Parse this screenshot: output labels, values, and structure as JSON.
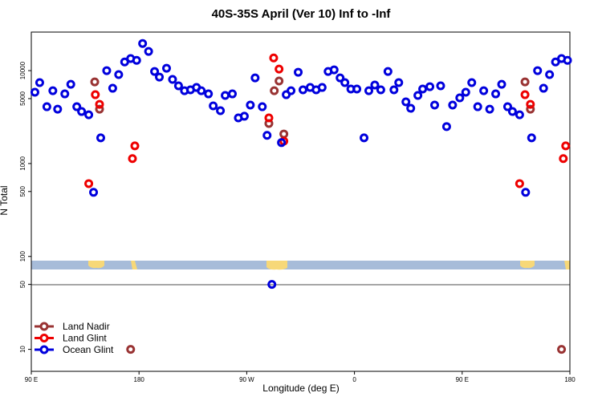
{
  "chart_data": {
    "type": "scatter",
    "title": "40S-35S April (Ver 10)   Inf to -Inf",
    "x_label": "Longitude (deg E)",
    "y_label": "N Total",
    "ylog": true,
    "legend": "bottom-left",
    "xlim": [
      90,
      540
    ],
    "ylim": [
      5.8,
      26000
    ],
    "xticks": [
      {
        "value": 90,
        "label": "90 E"
      },
      180,
      {
        "value": 270,
        "label": "90 W"
      },
      {
        "value": 360,
        "label": "0"
      },
      {
        "value": 450,
        "label": "90 E"
      },
      {
        "value": 540,
        "label": "180"
      }
    ],
    "yticks": [
      10,
      50,
      100,
      500,
      1000,
      5000,
      10000
    ],
    "series": [
      {
        "name": "Land Nadir",
        "color": "#993333",
        "x": [
          143,
          147,
          173,
          288.5,
          293,
          297,
          301,
          502.5,
          507,
          533
        ],
        "values": [
          7570,
          3850,
          10,
          2700,
          6080,
          7730,
          2080,
          7570,
          3850,
          10
        ]
      },
      {
        "name": "Land Glint",
        "color": "#ee0000",
        "x": [
          138,
          143.5,
          147,
          174.5,
          176.5,
          288.5,
          292.5,
          297,
          301,
          498,
          502.5,
          507,
          534.5,
          536.5
        ],
        "values": [
          608,
          5510,
          4340,
          1130,
          1550,
          3100,
          13700,
          10400,
          1740,
          608,
          5510,
          4340,
          1130,
          1550
        ]
      },
      {
        "name": "Ocean Glint",
        "color": "#0000dd",
        "x": [
          93,
          97,
          103,
          108,
          112,
          118,
          123,
          128,
          132,
          138,
          142,
          148,
          153,
          158,
          163,
          168,
          173,
          178,
          183,
          188,
          193,
          197,
          203,
          208,
          213,
          218,
          223,
          228,
          232,
          238,
          242,
          248,
          252,
          258,
          263,
          268,
          273,
          277,
          283,
          287,
          291,
          299,
          303,
          307,
          313,
          317,
          323,
          328,
          333,
          338,
          343,
          348,
          352,
          357,
          362,
          368,
          372,
          377,
          382,
          388,
          393,
          397,
          403,
          407,
          413,
          417,
          423,
          427,
          432,
          437,
          442,
          448,
          453,
          458,
          463,
          468,
          473,
          478,
          483,
          488,
          492,
          498,
          503,
          508,
          513,
          518,
          523,
          528,
          533,
          538
        ],
        "values": [
          5850,
          7430,
          4090,
          6080,
          3850,
          5620,
          7130,
          4090,
          3630,
          3350,
          490,
          1890,
          10000,
          6460,
          9060,
          12400,
          13500,
          12900,
          19600,
          16100,
          9800,
          8530,
          10600,
          8040,
          6860,
          6080,
          6210,
          6590,
          6080,
          5620,
          4180,
          3710,
          5410,
          5620,
          3100,
          3230,
          4260,
          8360,
          4090,
          2010,
          50,
          1680,
          5510,
          6080,
          9610,
          6210,
          6590,
          6210,
          6590,
          9800,
          10200,
          8360,
          7430,
          6340,
          6340,
          1890,
          6080,
          7000,
          6210,
          9800,
          6210,
          7430,
          4610,
          3930,
          5410,
          6340,
          6720,
          4260,
          6860,
          2500,
          4260,
          5090,
          5850,
          7430,
          4090,
          6080,
          3850,
          5620,
          7130,
          4090,
          3630,
          3350,
          490,
          1890,
          10000,
          6460,
          9060,
          12400,
          13500,
          12900
        ]
      }
    ]
  }
}
